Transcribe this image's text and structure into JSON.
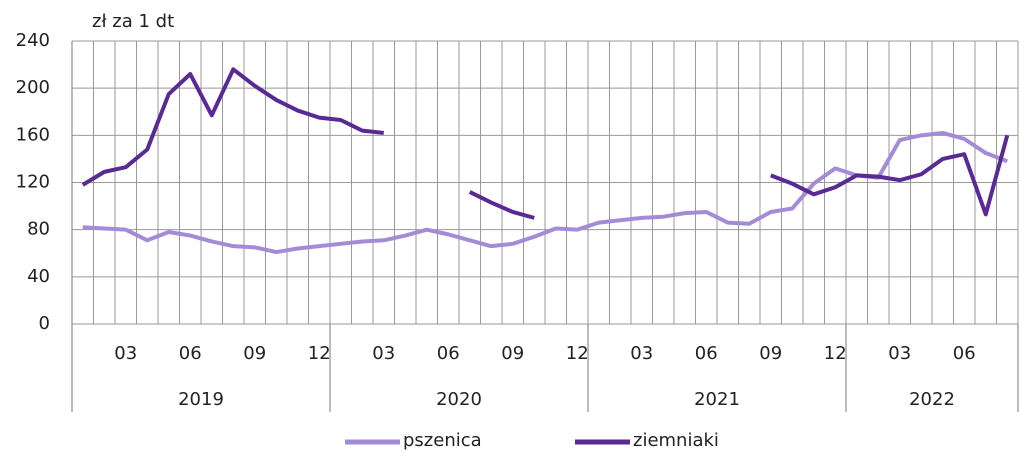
{
  "chart_data": {
    "type": "line",
    "y_label": "zł za 1 dt",
    "categories": [
      null,
      null,
      "03",
      null,
      null,
      "06",
      null,
      null,
      "09",
      null,
      null,
      "12",
      null,
      null,
      "03",
      null,
      null,
      "06",
      null,
      null,
      "09",
      null,
      null,
      "12",
      null,
      null,
      "03",
      null,
      null,
      "06",
      null,
      null,
      "09",
      null,
      null,
      "12",
      null,
      null,
      "03",
      null,
      null,
      "06",
      null,
      null
    ],
    "x_groups": [
      {
        "label": "2019",
        "count": 12
      },
      {
        "label": "2020",
        "count": 12
      },
      {
        "label": "2021",
        "count": 12
      },
      {
        "label": "2022",
        "count": 8
      }
    ],
    "series": [
      {
        "name": "pszenica",
        "color": "#a48bd6",
        "values": [
          82,
          81,
          80,
          71,
          78,
          75,
          70,
          66,
          65,
          61,
          64,
          66,
          68,
          70,
          71,
          75,
          80,
          76,
          71,
          66,
          68,
          74,
          81,
          80,
          86,
          88,
          90,
          91,
          94,
          95,
          86,
          85,
          95,
          98,
          119,
          132,
          126,
          124,
          156,
          160,
          162,
          157,
          145,
          138
        ]
      },
      {
        "name": "ziemniaki",
        "color": "#5a2a94",
        "values": [
          118,
          129,
          133,
          148,
          195,
          212,
          177,
          216,
          202,
          190,
          181,
          175,
          173,
          164,
          162,
          null,
          null,
          null,
          112,
          103,
          95,
          90,
          null,
          null,
          null,
          null,
          null,
          null,
          null,
          null,
          null,
          null,
          126,
          119,
          110,
          116,
          126,
          125,
          122,
          127,
          140,
          144,
          93,
          160
        ]
      }
    ],
    "ylim": [
      0,
      240
    ],
    "yticks": [
      0,
      40,
      80,
      120,
      160,
      200,
      240
    ],
    "grid": true,
    "legend": "bottom"
  }
}
